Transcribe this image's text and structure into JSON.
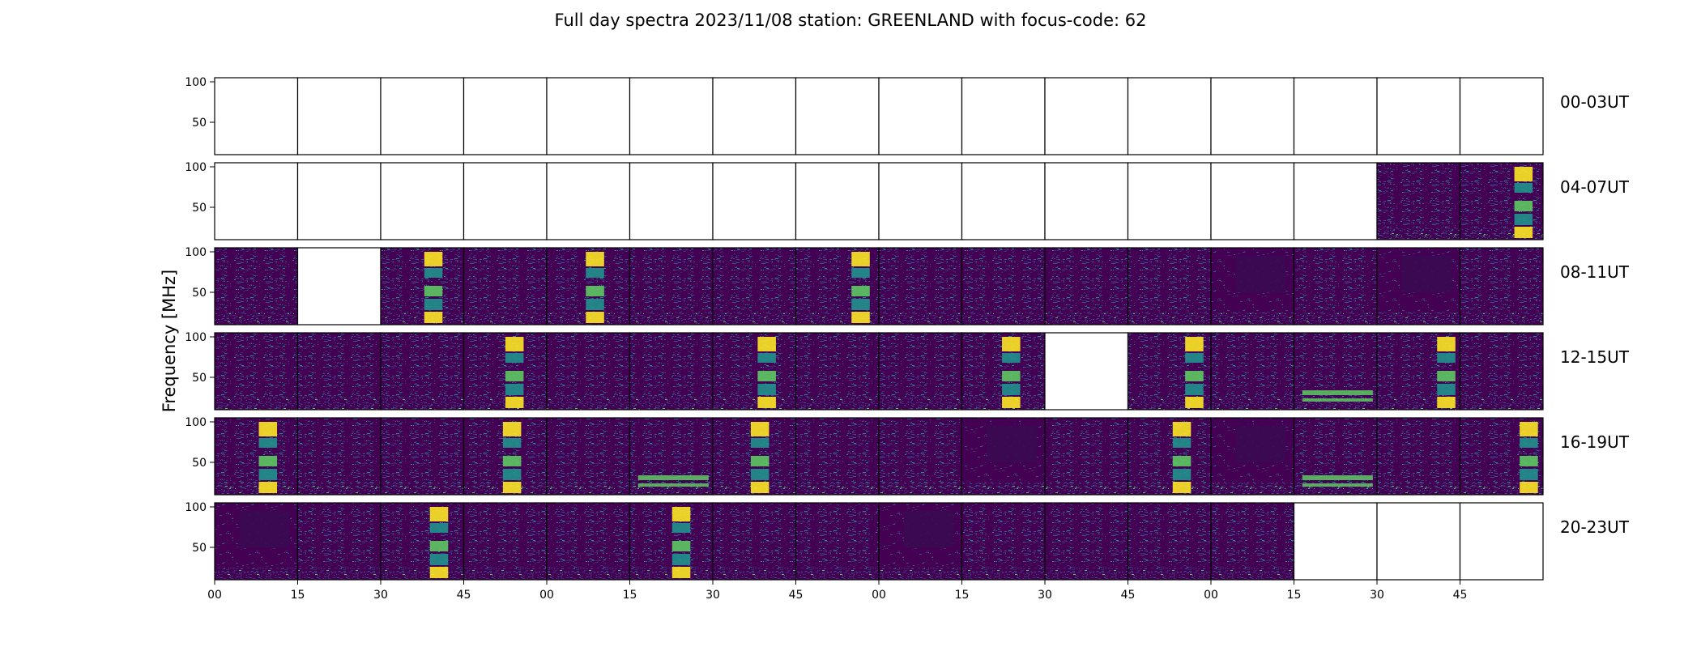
{
  "chart_data": {
    "type": "heatmap",
    "title": "Full day spectra 2023/11/08 station: GREENLAND with focus-code: 62",
    "ylabel": "Frequency [MHz]",
    "xlabel": "",
    "ylim": [
      10,
      105
    ],
    "y_ticks": [
      "100",
      "50"
    ],
    "y_tick_values": [
      100,
      50
    ],
    "x_tick_labels": [
      "00",
      "15",
      "30",
      "45",
      "00",
      "15",
      "30",
      "45",
      "00",
      "15",
      "30",
      "45",
      "00",
      "15",
      "30",
      "45"
    ],
    "colormap": [
      "#440154",
      "#3b528b",
      "#21918c",
      "#5ec962",
      "#fde725"
    ],
    "blank_color": "#ffffff",
    "rows": [
      {
        "label": "00-03UT",
        "panels": [
          "empty",
          "empty",
          "empty",
          "empty",
          "empty",
          "empty",
          "empty",
          "empty",
          "empty",
          "empty",
          "empty",
          "empty",
          "empty",
          "empty",
          "empty",
          "empty"
        ]
      },
      {
        "label": "04-07UT",
        "panels": [
          "empty",
          "empty",
          "empty",
          "empty",
          "empty",
          "empty",
          "empty",
          "empty",
          "empty",
          "empty",
          "empty",
          "empty",
          "empty",
          "empty",
          "noise",
          "burst"
        ]
      },
      {
        "label": "08-11UT",
        "panels": [
          "noise",
          "empty",
          "burst",
          "noise",
          "burst",
          "noise",
          "noise",
          "burst",
          "noise",
          "noise",
          "noise",
          "noise",
          "dark",
          "noise",
          "dark",
          "noise"
        ]
      },
      {
        "label": "12-15UT",
        "panels": [
          "noise",
          "noise",
          "noise",
          "burst",
          "noise",
          "noise",
          "burst",
          "noise",
          "noise",
          "burst",
          "empty",
          "burst",
          "noise",
          "band",
          "burst",
          "noise"
        ]
      },
      {
        "label": "16-19UT",
        "panels": [
          "burst",
          "noise",
          "noise",
          "burst",
          "noise",
          "band",
          "burst",
          "noise",
          "noise",
          "dark",
          "noise",
          "burst",
          "dark",
          "band",
          "noise",
          "burst"
        ]
      },
      {
        "label": "20-23UT",
        "panels": [
          "dark",
          "noise",
          "burst",
          "noise",
          "noise",
          "burst",
          "noise",
          "noise",
          "dark",
          "noise",
          "noise",
          "noise",
          "noise",
          "empty",
          "empty",
          "empty"
        ]
      }
    ]
  }
}
